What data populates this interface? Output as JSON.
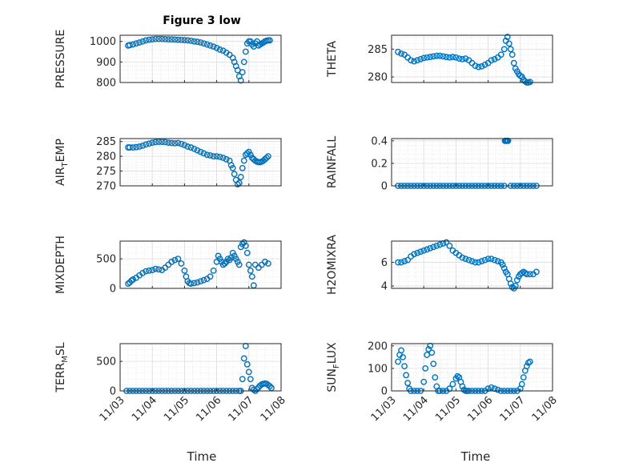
{
  "chart_data": {
    "type": "scatter",
    "title": "Figure 3 low",
    "xlabel": "Time",
    "marker_color": "#0072BD",
    "xlim": [
      0,
      5
    ],
    "xticks": [
      0,
      1,
      2,
      3,
      4,
      5
    ],
    "xticklabels": [
      "11/03",
      "11/04",
      "11/05",
      "11/06",
      "11/07",
      "11/08"
    ],
    "panels": [
      {
        "id": "pressure",
        "ylabel": "PRESSURE",
        "ylim": [
          800,
          1030
        ],
        "yticks": [
          800,
          900,
          1000
        ],
        "x": [
          0.25,
          0.3,
          0.4,
          0.5,
          0.6,
          0.7,
          0.8,
          0.9,
          1.0,
          1.1,
          1.2,
          1.3,
          1.4,
          1.5,
          1.6,
          1.7,
          1.8,
          1.9,
          2.0,
          2.1,
          2.2,
          2.3,
          2.4,
          2.5,
          2.6,
          2.7,
          2.8,
          2.9,
          3.0,
          3.1,
          3.2,
          3.3,
          3.4,
          3.5,
          3.55,
          3.6,
          3.65,
          3.7,
          3.75,
          3.8,
          3.85,
          3.9,
          3.95,
          4.0,
          4.05,
          4.1,
          4.15,
          4.2,
          4.25,
          4.3,
          4.35,
          4.4,
          4.45,
          4.5,
          4.55,
          4.6,
          4.65
        ],
        "y": [
          980,
          982,
          985,
          990,
          995,
          1000,
          1005,
          1008,
          1010,
          1012,
          1012,
          1012,
          1011,
          1010,
          1010,
          1009,
          1008,
          1007,
          1006,
          1005,
          1003,
          1000,
          998,
          995,
          990,
          985,
          980,
          975,
          968,
          960,
          955,
          945,
          935,
          920,
          900,
          880,
          860,
          830,
          810,
          850,
          900,
          950,
          990,
          1000,
          1000,
          985,
          975,
          990,
          1000,
          980,
          985,
          990,
          995,
          1000,
          1003,
          1005,
          1005
        ]
      },
      {
        "id": "theta",
        "ylabel": "THETA",
        "ylim": [
          279,
          287.5
        ],
        "yticks": [
          280,
          285
        ],
        "x": [
          0.2,
          0.3,
          0.4,
          0.5,
          0.6,
          0.7,
          0.8,
          0.9,
          1.0,
          1.1,
          1.2,
          1.3,
          1.4,
          1.5,
          1.6,
          1.7,
          1.8,
          1.9,
          2.0,
          2.1,
          2.2,
          2.3,
          2.4,
          2.5,
          2.6,
          2.7,
          2.8,
          2.9,
          3.0,
          3.1,
          3.2,
          3.3,
          3.4,
          3.5,
          3.55,
          3.6,
          3.65,
          3.7,
          3.75,
          3.8,
          3.85,
          3.9,
          3.95,
          4.0,
          4.05,
          4.1,
          4.15,
          4.2,
          4.25,
          4.3
        ],
        "y": [
          284.5,
          284.2,
          284,
          283.5,
          283,
          282.8,
          283,
          283.2,
          283.4,
          283.5,
          283.6,
          283.7,
          283.8,
          283.8,
          283.7,
          283.6,
          283.5,
          283.6,
          283.5,
          283.3,
          283.2,
          283.3,
          283,
          282.5,
          282,
          281.8,
          281.9,
          282.2,
          282.5,
          283,
          283.2,
          283.5,
          284,
          285,
          286.5,
          287.2,
          286,
          285,
          284,
          282.5,
          281.5,
          281,
          280.5,
          280.2,
          280,
          279.5,
          279.2,
          279,
          279,
          279.1
        ]
      },
      {
        "id": "air_temp",
        "ylabel": "AIR_TEMP",
        "ylim": [
          270,
          286
        ],
        "yticks": [
          270,
          275,
          280,
          285
        ],
        "x": [
          0.25,
          0.3,
          0.4,
          0.5,
          0.6,
          0.7,
          0.8,
          0.9,
          1.0,
          1.1,
          1.2,
          1.3,
          1.4,
          1.5,
          1.6,
          1.7,
          1.8,
          1.9,
          2.0,
          2.1,
          2.2,
          2.3,
          2.4,
          2.5,
          2.6,
          2.7,
          2.8,
          2.9,
          3.0,
          3.1,
          3.2,
          3.3,
          3.4,
          3.45,
          3.5,
          3.55,
          3.6,
          3.65,
          3.7,
          3.75,
          3.8,
          3.85,
          3.9,
          3.95,
          4.0,
          4.05,
          4.1,
          4.15,
          4.2,
          4.25,
          4.3,
          4.35,
          4.4,
          4.45,
          4.5,
          4.55,
          4.6
        ],
        "y": [
          283,
          283,
          283,
          283.1,
          283.3,
          283.6,
          284,
          284.3,
          284.6,
          284.8,
          284.9,
          284.9,
          284.8,
          284.6,
          284.5,
          284.4,
          284.5,
          284.2,
          283.8,
          283.3,
          283,
          282.5,
          282,
          281.5,
          281,
          280.5,
          280.3,
          280,
          280,
          279.8,
          279.5,
          279,
          278.5,
          277,
          276,
          274,
          272,
          270.5,
          271,
          273,
          276,
          278.5,
          280.5,
          281,
          281.5,
          280.5,
          279.5,
          279,
          278.5,
          278.2,
          278,
          278,
          278.2,
          278.5,
          279,
          279.5,
          280
        ]
      },
      {
        "id": "rainfall",
        "ylabel": "RAINFALL",
        "ylim": [
          0,
          0.42
        ],
        "yticks": [
          0,
          0.2,
          0.4
        ],
        "x": [
          0.2,
          0.3,
          0.4,
          0.5,
          0.6,
          0.7,
          0.8,
          0.9,
          1.0,
          1.1,
          1.2,
          1.3,
          1.4,
          1.5,
          1.6,
          1.7,
          1.8,
          1.9,
          2.0,
          2.1,
          2.2,
          2.3,
          2.4,
          2.5,
          2.6,
          2.7,
          2.8,
          2.9,
          3.0,
          3.1,
          3.2,
          3.3,
          3.4,
          3.5,
          3.52,
          3.55,
          3.58,
          3.6,
          3.62,
          3.7,
          3.8,
          3.9,
          4.0,
          4.1,
          4.2,
          4.3,
          4.4,
          4.5
        ],
        "y": [
          0,
          0,
          0,
          0,
          0,
          0,
          0,
          0,
          0,
          0,
          0,
          0,
          0,
          0,
          0,
          0,
          0,
          0,
          0,
          0,
          0,
          0,
          0,
          0,
          0,
          0,
          0,
          0,
          0,
          0,
          0,
          0,
          0,
          0,
          0.4,
          0.4,
          0.4,
          0.4,
          0.4,
          0,
          0,
          0,
          0,
          0,
          0,
          0,
          0,
          0
        ]
      },
      {
        "id": "mixdepth",
        "ylabel": "MIXDEPTH",
        "ylim": [
          0,
          800
        ],
        "yticks": [
          0,
          500
        ],
        "x": [
          0.25,
          0.3,
          0.35,
          0.4,
          0.5,
          0.6,
          0.7,
          0.8,
          0.9,
          1.0,
          1.1,
          1.2,
          1.3,
          1.4,
          1.5,
          1.6,
          1.7,
          1.8,
          1.9,
          2.0,
          2.05,
          2.1,
          2.15,
          2.2,
          2.3,
          2.4,
          2.5,
          2.6,
          2.7,
          2.8,
          2.9,
          3.0,
          3.05,
          3.1,
          3.15,
          3.2,
          3.25,
          3.3,
          3.35,
          3.4,
          3.45,
          3.5,
          3.55,
          3.6,
          3.65,
          3.7,
          3.75,
          3.8,
          3.85,
          3.9,
          3.95,
          4.0,
          4.05,
          4.1,
          4.15,
          4.2,
          4.3,
          4.4,
          4.5,
          4.6
        ],
        "y": [
          80,
          100,
          130,
          150,
          180,
          220,
          260,
          290,
          300,
          310,
          330,
          320,
          310,
          350,
          400,
          450,
          480,
          500,
          420,
          300,
          200,
          120,
          90,
          80,
          90,
          100,
          120,
          140,
          160,
          200,
          300,
          450,
          550,
          500,
          450,
          400,
          420,
          450,
          500,
          480,
          520,
          600,
          550,
          500,
          450,
          400,
          700,
          750,
          780,
          720,
          600,
          400,
          300,
          200,
          50,
          400,
          350,
          400,
          450,
          420
        ]
      },
      {
        "id": "h2omixra",
        "ylabel": "H2OMIXRA",
        "ylim": [
          3.8,
          7.8
        ],
        "yticks": [
          4,
          6
        ],
        "x": [
          0.2,
          0.3,
          0.4,
          0.5,
          0.6,
          0.7,
          0.8,
          0.9,
          1.0,
          1.1,
          1.2,
          1.3,
          1.4,
          1.5,
          1.6,
          1.7,
          1.8,
          1.9,
          2.0,
          2.1,
          2.2,
          2.3,
          2.4,
          2.5,
          2.6,
          2.7,
          2.8,
          2.9,
          3.0,
          3.1,
          3.2,
          3.3,
          3.4,
          3.45,
          3.5,
          3.55,
          3.6,
          3.65,
          3.7,
          3.75,
          3.8,
          3.85,
          3.9,
          3.95,
          4.0,
          4.05,
          4.1,
          4.15,
          4.2,
          4.3,
          4.4,
          4.5
        ],
        "y": [
          6,
          6,
          6.1,
          6.2,
          6.5,
          6.7,
          6.8,
          6.9,
          7,
          7.1,
          7.2,
          7.3,
          7.4,
          7.5,
          7.6,
          7.7,
          7.4,
          7,
          6.8,
          6.6,
          6.4,
          6.3,
          6.2,
          6.1,
          6,
          6,
          6.1,
          6.2,
          6.3,
          6.3,
          6.2,
          6.1,
          6,
          5.8,
          5.5,
          5.2,
          5,
          4.6,
          4.2,
          3.9,
          3.8,
          4,
          4.5,
          4.8,
          5,
          5.1,
          5.2,
          5.1,
          5,
          5,
          5,
          5.2
        ]
      },
      {
        "id": "terr_msl",
        "ylabel": "TERR_MSL",
        "ylim": [
          0,
          800
        ],
        "yticks": [
          0,
          500
        ],
        "x": [
          0.2,
          0.3,
          0.4,
          0.5,
          0.6,
          0.7,
          0.8,
          0.9,
          1.0,
          1.1,
          1.2,
          1.3,
          1.4,
          1.5,
          1.6,
          1.7,
          1.8,
          1.9,
          2.0,
          2.1,
          2.2,
          2.3,
          2.4,
          2.5,
          2.6,
          2.7,
          2.8,
          2.9,
          3.0,
          3.1,
          3.2,
          3.3,
          3.4,
          3.5,
          3.6,
          3.7,
          3.75,
          3.8,
          3.85,
          3.9,
          3.95,
          4.0,
          4.05,
          4.1,
          4.15,
          4.2,
          4.25,
          4.3,
          4.35,
          4.4,
          4.45,
          4.5,
          4.55,
          4.6,
          4.65,
          4.7
        ],
        "y": [
          0,
          0,
          0,
          0,
          0,
          0,
          0,
          0,
          0,
          0,
          0,
          0,
          0,
          0,
          0,
          0,
          0,
          0,
          0,
          0,
          0,
          0,
          0,
          0,
          0,
          0,
          0,
          0,
          0,
          0,
          0,
          0,
          0,
          0,
          0,
          0,
          0,
          200,
          550,
          760,
          450,
          320,
          200,
          50,
          20,
          0,
          30,
          60,
          90,
          110,
          120,
          125,
          120,
          100,
          80,
          50
        ]
      },
      {
        "id": "sun_flux",
        "ylabel": "SUN_FLUX",
        "ylim": [
          0,
          210
        ],
        "yticks": [
          0,
          100,
          200
        ],
        "x": [
          0.2,
          0.25,
          0.3,
          0.35,
          0.4,
          0.45,
          0.5,
          0.55,
          0.6,
          0.7,
          0.8,
          0.9,
          1.0,
          1.05,
          1.1,
          1.15,
          1.2,
          1.25,
          1.3,
          1.35,
          1.4,
          1.45,
          1.5,
          1.6,
          1.7,
          1.8,
          1.9,
          2.0,
          2.05,
          2.1,
          2.15,
          2.2,
          2.25,
          2.3,
          2.35,
          2.4,
          2.5,
          2.6,
          2.7,
          2.8,
          2.9,
          3.0,
          3.1,
          3.2,
          3.3,
          3.4,
          3.5,
          3.6,
          3.7,
          3.8,
          3.9,
          4.0,
          4.05,
          4.1,
          4.15,
          4.2,
          4.25,
          4.3
        ],
        "y": [
          130,
          160,
          180,
          150,
          110,
          70,
          35,
          10,
          0,
          0,
          0,
          0,
          40,
          100,
          160,
          185,
          200,
          170,
          120,
          60,
          20,
          0,
          0,
          0,
          0,
          10,
          30,
          55,
          65,
          60,
          40,
          20,
          5,
          0,
          0,
          0,
          0,
          0,
          0,
          0,
          0,
          10,
          15,
          10,
          5,
          0,
          0,
          0,
          0,
          0,
          0,
          10,
          30,
          60,
          90,
          110,
          125,
          130
        ]
      }
    ]
  }
}
